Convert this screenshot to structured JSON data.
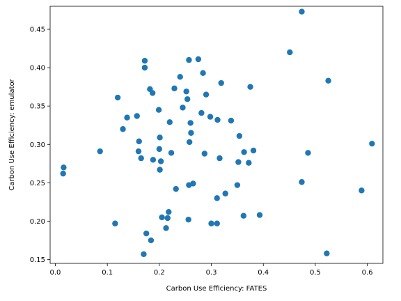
{
  "chart_data": {
    "type": "scatter",
    "title": "",
    "xlabel": "Carbon Use Efficiency: FATES",
    "ylabel": "Carbon Use Efficiency: emulator",
    "xlim": [
      -0.01,
      0.63
    ],
    "ylim": [
      0.145,
      0.48
    ],
    "xticks": [
      0.0,
      0.1,
      0.2,
      0.3,
      0.4,
      0.5,
      0.6
    ],
    "xtick_labels": [
      "0.0",
      "0.1",
      "0.2",
      "0.3",
      "0.4",
      "0.5",
      "0.6"
    ],
    "yticks": [
      0.15,
      0.2,
      0.25,
      0.3,
      0.35,
      0.4,
      0.45
    ],
    "ytick_labels": [
      "0.15",
      "0.20",
      "0.25",
      "0.30",
      "0.35",
      "0.40",
      "0.45"
    ],
    "grid": false,
    "point_color": "#1f77b4",
    "points": [
      [
        0.015,
        0.262
      ],
      [
        0.016,
        0.27
      ],
      [
        0.086,
        0.291
      ],
      [
        0.115,
        0.197
      ],
      [
        0.12,
        0.361
      ],
      [
        0.13,
        0.32
      ],
      [
        0.138,
        0.335
      ],
      [
        0.157,
        0.337
      ],
      [
        0.16,
        0.291
      ],
      [
        0.161,
        0.304
      ],
      [
        0.165,
        0.282
      ],
      [
        0.17,
        0.157
      ],
      [
        0.172,
        0.409
      ],
      [
        0.172,
        0.4
      ],
      [
        0.175,
        0.184
      ],
      [
        0.182,
        0.372
      ],
      [
        0.184,
        0.175
      ],
      [
        0.187,
        0.367
      ],
      [
        0.188,
        0.28
      ],
      [
        0.199,
        0.345
      ],
      [
        0.2,
        0.294
      ],
      [
        0.201,
        0.309
      ],
      [
        0.201,
        0.267
      ],
      [
        0.203,
        0.278
      ],
      [
        0.205,
        0.205
      ],
      [
        0.213,
        0.191
      ],
      [
        0.216,
        0.204
      ],
      [
        0.218,
        0.212
      ],
      [
        0.22,
        0.329
      ],
      [
        0.223,
        0.289
      ],
      [
        0.229,
        0.373
      ],
      [
        0.232,
        0.242
      ],
      [
        0.24,
        0.388
      ],
      [
        0.245,
        0.348
      ],
      [
        0.252,
        0.369
      ],
      [
        0.254,
        0.359
      ],
      [
        0.256,
        0.202
      ],
      [
        0.257,
        0.41
      ],
      [
        0.257,
        0.247
      ],
      [
        0.258,
        0.303
      ],
      [
        0.26,
        0.328
      ],
      [
        0.261,
        0.315
      ],
      [
        0.265,
        0.249
      ],
      [
        0.275,
        0.411
      ],
      [
        0.281,
        0.341
      ],
      [
        0.284,
        0.393
      ],
      [
        0.287,
        0.288
      ],
      [
        0.29,
        0.365
      ],
      [
        0.298,
        0.336
      ],
      [
        0.3,
        0.197
      ],
      [
        0.311,
        0.23
      ],
      [
        0.311,
        0.197
      ],
      [
        0.312,
        0.332
      ],
      [
        0.316,
        0.282
      ],
      [
        0.319,
        0.38
      ],
      [
        0.327,
        0.236
      ],
      [
        0.338,
        0.331
      ],
      [
        0.35,
        0.247
      ],
      [
        0.352,
        0.277
      ],
      [
        0.354,
        0.311
      ],
      [
        0.362,
        0.207
      ],
      [
        0.363,
        0.29
      ],
      [
        0.372,
        0.276
      ],
      [
        0.375,
        0.375
      ],
      [
        0.381,
        0.292
      ],
      [
        0.393,
        0.208
      ],
      [
        0.451,
        0.42
      ],
      [
        0.474,
        0.251
      ],
      [
        0.474,
        0.473
      ],
      [
        0.486,
        0.289
      ],
      [
        0.522,
        0.158
      ],
      [
        0.525,
        0.383
      ],
      [
        0.589,
        0.24
      ],
      [
        0.609,
        0.301
      ]
    ]
  }
}
